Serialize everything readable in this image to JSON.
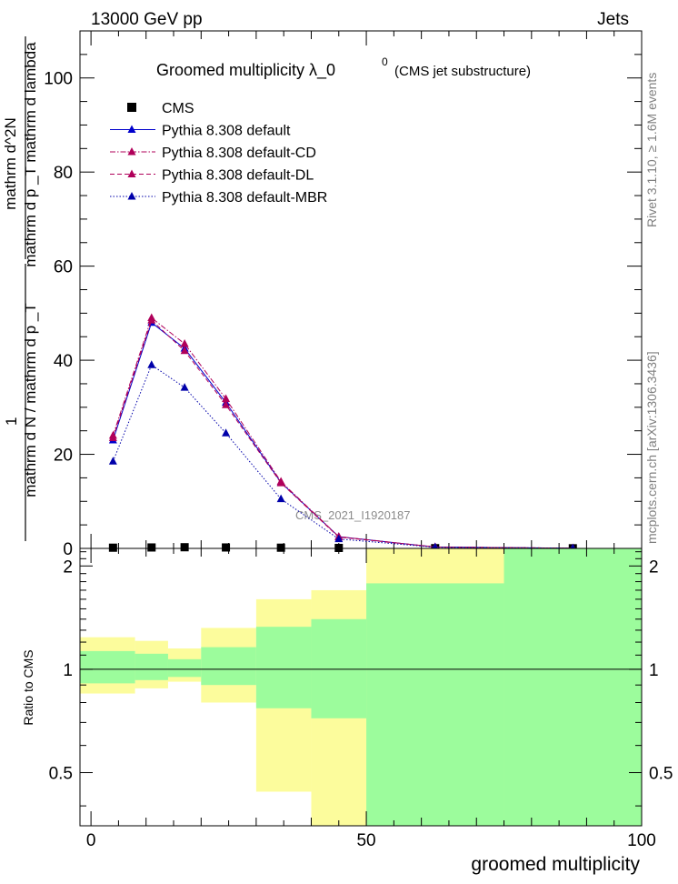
{
  "header": {
    "left": "13000 GeV pp",
    "right": "Jets",
    "title": "Groomed multiplicity  λ_0",
    "title_sup": "0",
    "title_suffix": "(CMS jet substructure)",
    "side_top": "Rivet 3.1.10, ≥ 1.6M events",
    "side_bottom": "mcplots.cern.ch [arXiv:1306.3436]",
    "watermark": "CMS_2021_I1920187"
  },
  "chart_data": [
    {
      "type": "scatter",
      "panel": "main",
      "xlim": [
        -2,
        100
      ],
      "ylim": [
        0,
        110
      ],
      "y_ticks": [
        0,
        20,
        40,
        60,
        80,
        100
      ],
      "ylabel_top": "1",
      "ylabel_denominator": "mathrm d N / mathrm d p _T",
      "ylabel_numerator": "mathrm d^2N",
      "ylabel_denominator2": "mathrm d p _T mathrm d lambda",
      "legend_position": "top-left",
      "x": [
        4,
        11,
        17,
        24.5,
        34.5,
        45,
        62.5,
        87.5
      ],
      "series": [
        {
          "name": "CMS",
          "color": "#000000",
          "marker": "square",
          "line": "none",
          "values": [
            0.15,
            0.2,
            0.25,
            0.2,
            0.15,
            0.1,
            0.05,
            0.03
          ]
        },
        {
          "name": "Pythia 8.308 default",
          "color": "#0000cc",
          "marker": "triangle",
          "line": "solid",
          "values": [
            23,
            48,
            42.5,
            31,
            14,
            2.5,
            0.3,
            0.05
          ]
        },
        {
          "name": "Pythia 8.308 default-CD",
          "color": "#b0005a",
          "marker": "triangle",
          "line": "dashdot",
          "values": [
            24,
            49,
            43.5,
            31.8,
            14.2,
            2.5,
            0.3,
            0.05
          ]
        },
        {
          "name": "Pythia 8.308 default-DL",
          "color": "#b0005a",
          "marker": "triangle",
          "line": "dashed",
          "values": [
            23.5,
            48.5,
            42,
            30.5,
            13.9,
            2.4,
            0.3,
            0.05
          ]
        },
        {
          "name": "Pythia 8.308 default-MBR",
          "color": "#0000aa",
          "marker": "triangle",
          "line": "dotted",
          "values": [
            18.5,
            39,
            34.2,
            24.5,
            10.5,
            2,
            0.25,
            0.04
          ]
        }
      ]
    },
    {
      "type": "area",
      "panel": "ratio",
      "xlim": [
        -2,
        100
      ],
      "ylim": [
        0.35,
        2.25
      ],
      "y_ticks": [
        0.5,
        1,
        2
      ],
      "y_tick_labels": [
        "0.5",
        "1",
        "2"
      ],
      "x_ticks": [
        0,
        50,
        100
      ],
      "x_tick_labels": [
        "0",
        "50",
        "100"
      ],
      "xlabel": "groomed multiplicity",
      "ylabel": "Ratio to CMS",
      "band_colors": {
        "stat": "#9cfc9c",
        "total": "#fcfc9c"
      },
      "bins": [
        {
          "lo": -2,
          "hi": 8,
          "total_lo": 0.85,
          "total_hi": 1.24,
          "stat_lo": 0.91,
          "stat_hi": 1.13
        },
        {
          "lo": 8,
          "hi": 14,
          "total_lo": 0.88,
          "total_hi": 1.21,
          "stat_lo": 0.93,
          "stat_hi": 1.11
        },
        {
          "lo": 14,
          "hi": 20,
          "total_lo": 0.92,
          "total_hi": 1.15,
          "stat_lo": 0.95,
          "stat_hi": 1.07
        },
        {
          "lo": 20,
          "hi": 30,
          "total_lo": 0.8,
          "total_hi": 1.32,
          "stat_lo": 0.9,
          "stat_hi": 1.16
        },
        {
          "lo": 30,
          "hi": 40,
          "total_lo": 0.44,
          "total_hi": 1.6,
          "stat_lo": 0.77,
          "stat_hi": 1.33
        },
        {
          "lo": 40,
          "hi": 50,
          "total_lo": 0.35,
          "total_hi": 1.7,
          "stat_lo": 0.72,
          "stat_hi": 1.4
        },
        {
          "lo": 50,
          "hi": 75,
          "total_lo": 0.35,
          "total_hi": 2.25,
          "stat_lo": 0.35,
          "stat_hi": 1.78
        },
        {
          "lo": 75,
          "hi": 100,
          "total_lo": 0.35,
          "total_hi": 2.25,
          "stat_lo": 0.35,
          "stat_hi": 2.25
        }
      ],
      "reference_line": 1
    }
  ]
}
